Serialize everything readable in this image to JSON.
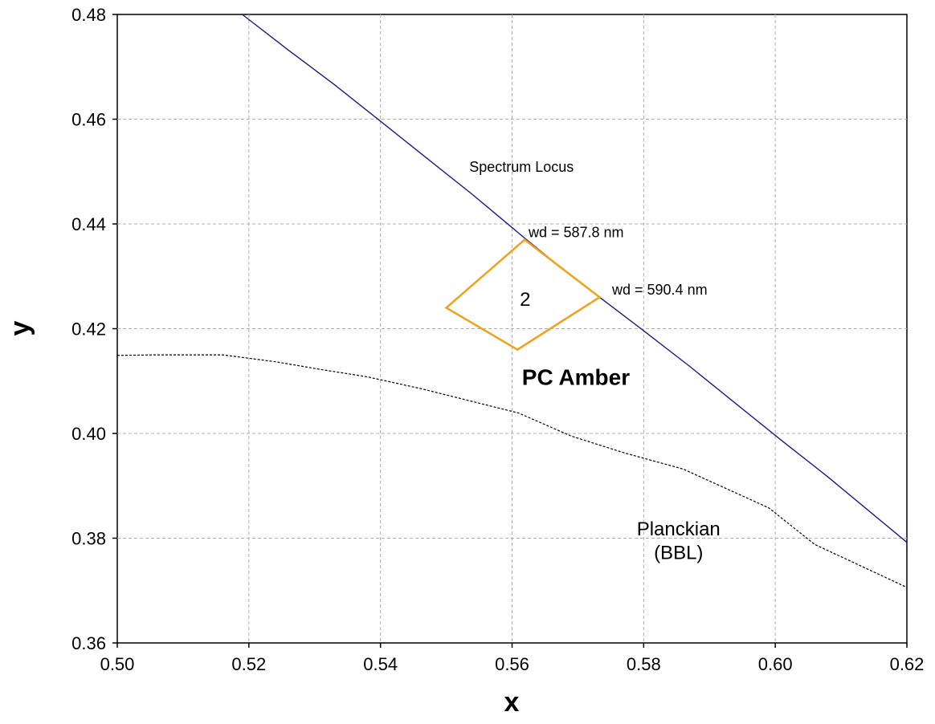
{
  "chart_data": {
    "type": "line",
    "xlabel": "x",
    "ylabel": "y",
    "xlim": [
      0.5,
      0.62
    ],
    "ylim": [
      0.36,
      0.48
    ],
    "x_ticks": [
      0.5,
      0.52,
      0.54,
      0.56,
      0.58,
      0.6,
      0.62
    ],
    "y_ticks": [
      0.36,
      0.38,
      0.4,
      0.42,
      0.44,
      0.46,
      0.48
    ],
    "x_tick_labels": [
      "0.50",
      "0.52",
      "0.54",
      "0.56",
      "0.58",
      "0.60",
      "0.62"
    ],
    "y_tick_labels": [
      "0.36",
      "0.38",
      "0.40",
      "0.42",
      "0.44",
      "0.46",
      "0.48"
    ],
    "grid": true,
    "legend": "none",
    "series": [
      {
        "key": "spectrum-locus",
        "color": "#1a1a8c",
        "style": "solid",
        "points": [
          [
            0.519,
            0.48
          ],
          [
            0.526,
            0.4732
          ],
          [
            0.533,
            0.4666
          ],
          [
            0.54,
            0.4596
          ],
          [
            0.547,
            0.4526
          ],
          [
            0.554,
            0.4456
          ],
          [
            0.5619,
            0.4373
          ],
          [
            0.5675,
            0.4316
          ],
          [
            0.5733,
            0.426
          ],
          [
            0.58,
            0.4196
          ],
          [
            0.587,
            0.4128
          ],
          [
            0.594,
            0.4057
          ],
          [
            0.601,
            0.3986
          ],
          [
            0.608,
            0.3917
          ],
          [
            0.62,
            0.3792
          ]
        ]
      },
      {
        "key": "planckian-bbl",
        "color": "#000000",
        "style": "dashed",
        "points": [
          [
            0.5,
            0.4149
          ],
          [
            0.506,
            0.415
          ],
          [
            0.516,
            0.415
          ],
          [
            0.524,
            0.4137
          ],
          [
            0.531,
            0.4122
          ],
          [
            0.538,
            0.4108
          ],
          [
            0.546,
            0.4086
          ],
          [
            0.553,
            0.4064
          ],
          [
            0.561,
            0.4039
          ],
          [
            0.569,
            0.3995
          ],
          [
            0.577,
            0.3963
          ],
          [
            0.586,
            0.3932
          ],
          [
            0.599,
            0.3858
          ],
          [
            0.606,
            0.3788
          ],
          [
            0.62,
            0.3706
          ]
        ]
      }
    ],
    "regions": [
      {
        "key": "pc-amber-bin",
        "label": "2",
        "color": "#f5a01a",
        "vertices": [
          [
            0.5619,
            0.437
          ],
          [
            0.5733,
            0.426
          ],
          [
            0.5608,
            0.416
          ],
          [
            0.55,
            0.424
          ]
        ]
      }
    ],
    "annotations": [
      {
        "key": "spectrum-locus-label",
        "text": "Spectrum Locus",
        "x": 0.5535,
        "y": 0.45,
        "size": "small",
        "color": "#000000",
        "bold": false,
        "anchor": "start"
      },
      {
        "key": "wd-587-label",
        "text": "wd = 587.8 nm",
        "x": 0.5625,
        "y": 0.4375,
        "size": "small",
        "color": "#000000",
        "bold": false,
        "anchor": "start"
      },
      {
        "key": "wd-590-label",
        "text": "wd = 590.4 nm",
        "x": 0.5752,
        "y": 0.4265,
        "size": "small",
        "color": "#000000",
        "bold": false,
        "anchor": "start"
      },
      {
        "key": "pc-amber-label",
        "text": "PC Amber",
        "x": 0.5615,
        "y": 0.4093,
        "size": "large",
        "color": "#f5a01a",
        "bold": true,
        "anchor": "start"
      },
      {
        "key": "planckian-label",
        "text": "Planckian",
        "x": 0.5853,
        "y": 0.3805,
        "size": "medium",
        "color": "#000000",
        "bold": false,
        "anchor": "middle"
      },
      {
        "key": "bbl-label",
        "text": "(BBL)",
        "x": 0.5853,
        "y": 0.376,
        "size": "medium",
        "color": "#000000",
        "bold": false,
        "anchor": "middle"
      }
    ]
  }
}
